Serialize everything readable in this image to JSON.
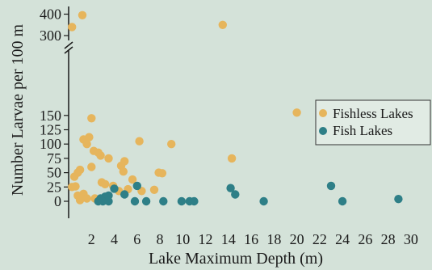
{
  "chart_data": {
    "type": "scatter",
    "title": "",
    "xlabel": "Lake Maximum Depth (m)",
    "ylabel": "Number Larvae per 100 m",
    "xlim": [
      0,
      30
    ],
    "x_ticks": [
      2,
      4,
      6,
      8,
      10,
      12,
      14,
      16,
      18,
      20,
      22,
      24,
      26,
      28,
      30
    ],
    "y_ticks_lower": [
      0,
      25,
      50,
      75,
      100,
      125,
      150
    ],
    "y_ticks_upper": [
      300,
      400
    ],
    "y_axis_break": [
      155,
      300
    ],
    "legend_position": "right",
    "grid": false,
    "series": [
      {
        "name": "Fishless Lakes",
        "color": "#e6b55c",
        "points": [
          [
            0.3,
            340
          ],
          [
            1.2,
            395
          ],
          [
            2.0,
            145
          ],
          [
            13.5,
            350
          ],
          [
            20.0,
            155
          ],
          [
            1.3,
            108
          ],
          [
            1.8,
            112
          ],
          [
            1.6,
            100
          ],
          [
            2.2,
            88
          ],
          [
            2.8,
            80
          ],
          [
            3.5,
            75
          ],
          [
            2.6,
            85
          ],
          [
            6.2,
            105
          ],
          [
            9.0,
            100
          ],
          [
            4.9,
            70
          ],
          [
            4.6,
            62
          ],
          [
            14.3,
            75
          ],
          [
            4.8,
            52
          ],
          [
            5.6,
            38
          ],
          [
            1.0,
            55
          ],
          [
            0.8,
            50
          ],
          [
            0.5,
            43
          ],
          [
            2.0,
            60
          ],
          [
            7.9,
            50
          ],
          [
            8.2,
            49
          ],
          [
            0.3,
            25
          ],
          [
            0.6,
            26
          ],
          [
            2.9,
            33
          ],
          [
            3.2,
            30
          ],
          [
            3.9,
            27
          ],
          [
            7.5,
            20
          ],
          [
            4.4,
            18
          ],
          [
            0.8,
            10
          ],
          [
            1.3,
            13
          ],
          [
            1.6,
            5
          ],
          [
            2.3,
            5
          ],
          [
            1.0,
            2
          ],
          [
            3.2,
            6
          ],
          [
            5.2,
            21
          ],
          [
            6.4,
            18
          ]
        ]
      },
      {
        "name": "Fish Lakes",
        "color": "#2e7f87",
        "points": [
          [
            6.0,
            27
          ],
          [
            14.2,
            23
          ],
          [
            23.0,
            27
          ],
          [
            14.6,
            12
          ],
          [
            4.0,
            22
          ],
          [
            4.9,
            12
          ],
          [
            3.5,
            10
          ],
          [
            3.2,
            8
          ],
          [
            2.8,
            5
          ],
          [
            3.0,
            0
          ],
          [
            2.6,
            0
          ],
          [
            3.5,
            0
          ],
          [
            5.8,
            0
          ],
          [
            6.8,
            0
          ],
          [
            8.3,
            0
          ],
          [
            9.9,
            0
          ],
          [
            10.6,
            0
          ],
          [
            11.0,
            0
          ],
          [
            17.1,
            0
          ],
          [
            24.0,
            0
          ],
          [
            28.9,
            4
          ]
        ]
      }
    ]
  }
}
